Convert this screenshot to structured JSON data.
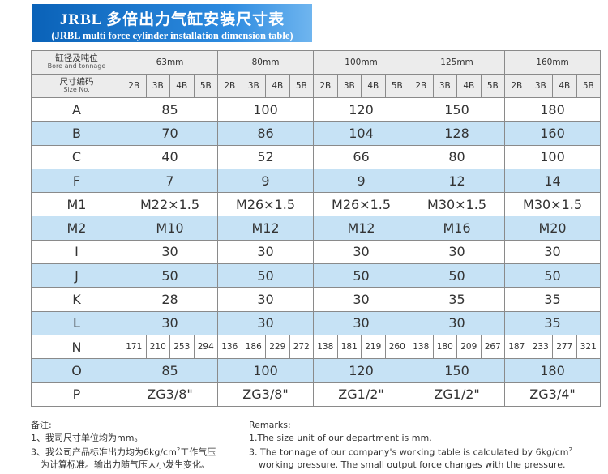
{
  "header": {
    "title": "JRBL 多倍出力气缸安装尺寸表",
    "subtitle": "(JRBL multi force cylinder installation dimension table)"
  },
  "table": {
    "corner_top": {
      "cn": "缸径及吨位",
      "en": "Bore and tonnage"
    },
    "corner_bottom": {
      "cn": "尺寸编码",
      "en": "Size No."
    },
    "sizes": [
      "63mm",
      "80mm",
      "100mm",
      "125mm",
      "160mm"
    ],
    "subcolumns": [
      "2B",
      "3B",
      "4B",
      "5B"
    ],
    "rows": [
      {
        "label": "A",
        "values": [
          "85",
          "100",
          "120",
          "150",
          "180"
        ]
      },
      {
        "label": "B",
        "values": [
          "70",
          "86",
          "104",
          "128",
          "160"
        ]
      },
      {
        "label": "C",
        "values": [
          "40",
          "52",
          "66",
          "80",
          "100"
        ]
      },
      {
        "label": "F",
        "values": [
          "7",
          "9",
          "9",
          "12",
          "14"
        ]
      },
      {
        "label": "M1",
        "values": [
          "M22×1.5",
          "M26×1.5",
          "M26×1.5",
          "M30×1.5",
          "M30×1.5"
        ]
      },
      {
        "label": "M2",
        "values": [
          "M10",
          "M12",
          "M12",
          "M16",
          "M20"
        ]
      },
      {
        "label": "I",
        "values": [
          "30",
          "30",
          "30",
          "30",
          "30"
        ]
      },
      {
        "label": "J",
        "values": [
          "50",
          "50",
          "50",
          "50",
          "50"
        ]
      },
      {
        "label": "K",
        "values": [
          "28",
          "30",
          "30",
          "35",
          "35"
        ]
      },
      {
        "label": "L",
        "values": [
          "30",
          "30",
          "30",
          "30",
          "35"
        ]
      },
      {
        "label": "N",
        "values": [
          "171",
          "210",
          "253",
          "294",
          "136",
          "186",
          "229",
          "272",
          "138",
          "181",
          "219",
          "260",
          "138",
          "180",
          "209",
          "267",
          "187",
          "233",
          "277",
          "321"
        ]
      },
      {
        "label": "O",
        "values": [
          "85",
          "100",
          "120",
          "150",
          "180"
        ]
      },
      {
        "label": "P",
        "values": [
          "ZG3/8\"",
          "ZG3/8\"",
          "ZG1/2\"",
          "ZG1/2\"",
          "ZG3/4\""
        ]
      }
    ]
  },
  "notes": {
    "cn": {
      "title": "备注:",
      "line1": "1、我司尺寸单位均为mm。",
      "line3": {
        "before": "3、我公司产品标准出力均为6kg/cm",
        "sup": "2",
        "after": "工作气压",
        "cont": "为计算标准。输出力随气压大小发生变化。"
      }
    },
    "en": {
      "title": "Remarks:",
      "line1": "1.The size unit of our department is mm.",
      "line3": {
        "before": "3. The tonnage of our company's working table is calculated by 6kg/cm",
        "sup": "2",
        "after": "",
        "cont": "working pressure. The small output force changes with the pressure."
      }
    }
  }
}
